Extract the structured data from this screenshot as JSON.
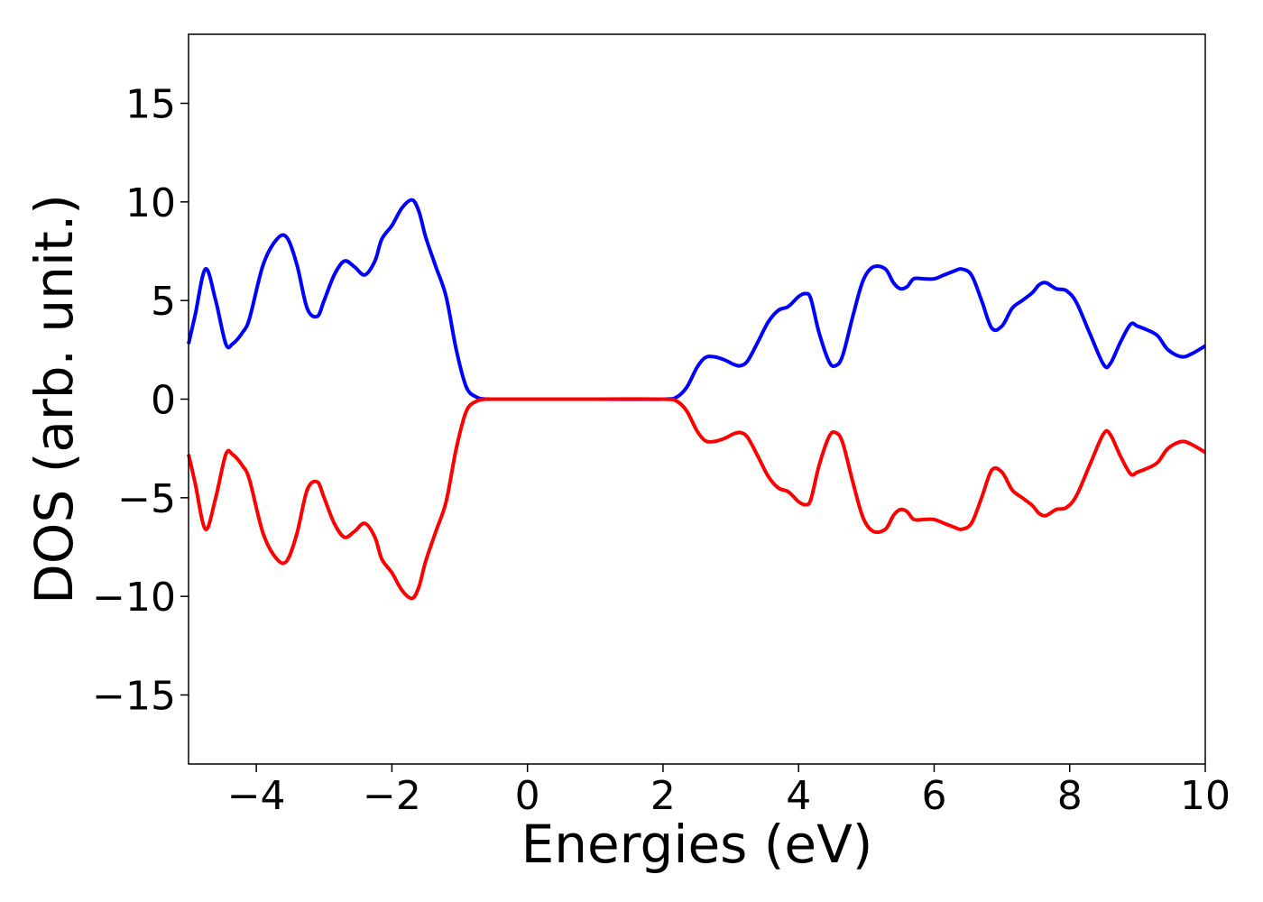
{
  "chart_data": {
    "type": "line",
    "xlabel": "Energies (eV)",
    "ylabel": "DOS (arb. unit.)",
    "xlim": [
      -5,
      10
    ],
    "ylim": [
      -18.5,
      18.5
    ],
    "xticks": [
      -4,
      -2,
      0,
      2,
      4,
      6,
      8,
      10
    ],
    "xtick_labels": [
      "−4",
      "−2",
      "0",
      "2",
      "4",
      "6",
      "8",
      "10"
    ],
    "yticks": [
      -15,
      -10,
      -5,
      0,
      5,
      10,
      15
    ],
    "ytick_labels": [
      "−15",
      "−10",
      "−5",
      "0",
      "5",
      "10",
      "15"
    ],
    "grid": false,
    "legend": "none",
    "series": [
      {
        "color": "#0000ff",
        "x": [
          -5.0,
          -4.9,
          -4.75,
          -4.6,
          -4.45,
          -4.35,
          -4.2,
          -4.1,
          -3.9,
          -3.7,
          -3.55,
          -3.4,
          -3.25,
          -3.1,
          -3.0,
          -2.85,
          -2.7,
          -2.55,
          -2.4,
          -2.25,
          -2.15,
          -2.0,
          -1.85,
          -1.7,
          -1.6,
          -1.5,
          -1.35,
          -1.2,
          -1.05,
          -0.9,
          -0.75,
          -0.62,
          -0.5,
          0.0,
          1.0,
          2.0,
          2.2,
          2.35,
          2.5,
          2.62,
          2.75,
          2.9,
          3.05,
          3.15,
          3.25,
          3.4,
          3.55,
          3.7,
          3.85,
          4.0,
          4.1,
          4.18,
          4.3,
          4.45,
          4.55,
          4.65,
          4.8,
          4.95,
          5.1,
          5.28,
          5.4,
          5.5,
          5.6,
          5.7,
          5.85,
          6.0,
          6.15,
          6.3,
          6.4,
          6.55,
          6.7,
          6.85,
          7.0,
          7.15,
          7.3,
          7.45,
          7.55,
          7.65,
          7.8,
          7.95,
          8.1,
          8.3,
          8.5,
          8.6,
          8.75,
          8.9,
          9.0,
          9.15,
          9.3,
          9.45,
          9.65,
          9.8,
          10.0
        ],
        "y": [
          2.8,
          4.3,
          6.6,
          5.0,
          2.8,
          2.8,
          3.4,
          4.1,
          6.8,
          8.1,
          8.2,
          6.8,
          4.6,
          4.2,
          5.0,
          6.3,
          7.0,
          6.7,
          6.3,
          7.0,
          8.1,
          8.8,
          9.7,
          10.1,
          9.5,
          8.2,
          6.7,
          5.2,
          2.5,
          0.6,
          0.1,
          0.0,
          0.0,
          0.0,
          0.0,
          0.0,
          0.1,
          0.6,
          1.6,
          2.1,
          2.15,
          2.0,
          1.75,
          1.7,
          1.95,
          2.9,
          3.9,
          4.5,
          4.7,
          5.2,
          5.35,
          5.1,
          3.4,
          1.9,
          1.7,
          2.2,
          4.2,
          6.0,
          6.7,
          6.6,
          5.9,
          5.6,
          5.7,
          6.1,
          6.1,
          6.1,
          6.3,
          6.5,
          6.6,
          6.3,
          5.0,
          3.6,
          3.7,
          4.6,
          5.0,
          5.4,
          5.8,
          5.9,
          5.6,
          5.5,
          4.9,
          3.3,
          1.75,
          1.8,
          2.9,
          3.8,
          3.7,
          3.5,
          3.2,
          2.5,
          2.15,
          2.3,
          2.7
        ]
      },
      {
        "color": "#ff0000",
        "x": [
          -5.0,
          -4.9,
          -4.75,
          -4.6,
          -4.45,
          -4.35,
          -4.2,
          -4.1,
          -3.9,
          -3.7,
          -3.55,
          -3.4,
          -3.25,
          -3.1,
          -3.0,
          -2.85,
          -2.7,
          -2.55,
          -2.4,
          -2.25,
          -2.15,
          -2.0,
          -1.85,
          -1.7,
          -1.6,
          -1.5,
          -1.35,
          -1.2,
          -1.05,
          -0.9,
          -0.75,
          -0.62,
          -0.5,
          0.0,
          1.0,
          2.0,
          2.2,
          2.35,
          2.5,
          2.62,
          2.75,
          2.9,
          3.05,
          3.15,
          3.25,
          3.4,
          3.55,
          3.7,
          3.85,
          4.0,
          4.1,
          4.18,
          4.3,
          4.45,
          4.55,
          4.65,
          4.8,
          4.95,
          5.1,
          5.28,
          5.4,
          5.5,
          5.6,
          5.7,
          5.85,
          6.0,
          6.15,
          6.3,
          6.4,
          6.55,
          6.7,
          6.85,
          7.0,
          7.15,
          7.3,
          7.45,
          7.55,
          7.65,
          7.8,
          7.95,
          8.1,
          8.3,
          8.5,
          8.6,
          8.75,
          8.9,
          9.0,
          9.15,
          9.3,
          9.45,
          9.65,
          9.8,
          10.0
        ],
        "y": [
          -2.8,
          -4.3,
          -6.6,
          -5.0,
          -2.8,
          -2.8,
          -3.4,
          -4.1,
          -6.8,
          -8.1,
          -8.2,
          -6.8,
          -4.6,
          -4.2,
          -5.0,
          -6.3,
          -7.0,
          -6.7,
          -6.3,
          -7.0,
          -8.1,
          -8.8,
          -9.7,
          -10.1,
          -9.5,
          -8.2,
          -6.7,
          -5.2,
          -2.5,
          -0.6,
          -0.1,
          0.0,
          0.0,
          0.0,
          0.0,
          0.0,
          -0.1,
          -0.6,
          -1.6,
          -2.1,
          -2.15,
          -2.0,
          -1.75,
          -1.7,
          -1.95,
          -2.9,
          -3.9,
          -4.5,
          -4.7,
          -5.2,
          -5.35,
          -5.1,
          -3.4,
          -1.9,
          -1.7,
          -2.2,
          -4.2,
          -6.0,
          -6.7,
          -6.6,
          -5.9,
          -5.6,
          -5.7,
          -6.1,
          -6.1,
          -6.1,
          -6.3,
          -6.5,
          -6.6,
          -6.3,
          -5.0,
          -3.6,
          -3.7,
          -4.6,
          -5.0,
          -5.4,
          -5.8,
          -5.9,
          -5.6,
          -5.5,
          -4.9,
          -3.3,
          -1.75,
          -1.8,
          -2.9,
          -3.8,
          -3.7,
          -3.5,
          -3.2,
          -2.5,
          -2.15,
          -2.3,
          -2.7
        ]
      }
    ]
  }
}
